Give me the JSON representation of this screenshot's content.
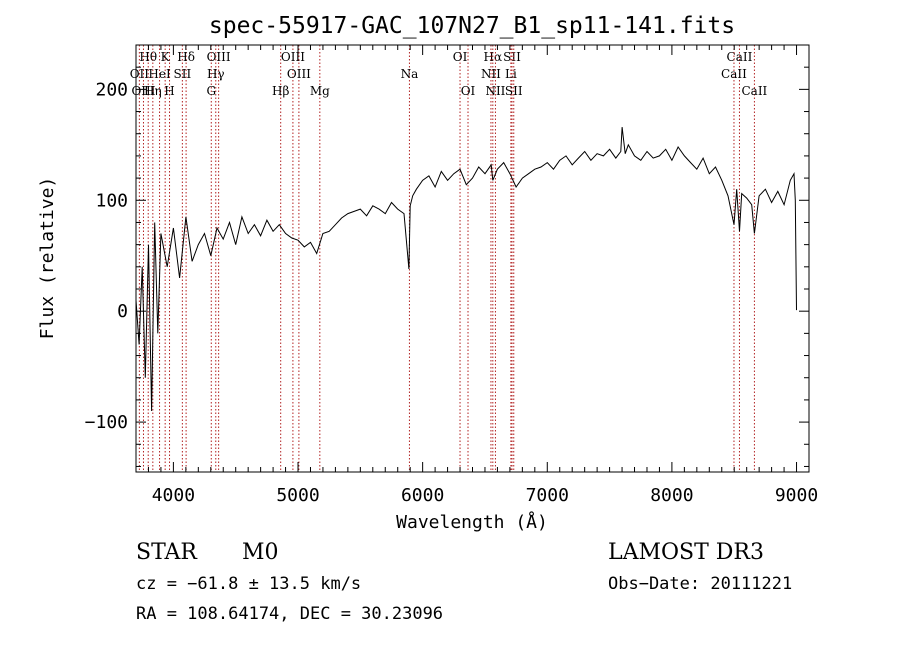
{
  "chart_data": {
    "type": "line",
    "title": "spec-55917-GAC_107N27_B1_sp11-141.fits",
    "xlabel": "Wavelength (Å)",
    "ylabel": "Flux (relative)",
    "xlim": [
      3700,
      9100
    ],
    "ylim": [
      -145,
      240
    ],
    "xticks": [
      4000,
      5000,
      6000,
      7000,
      8000,
      9000
    ],
    "xtick_labels": [
      "4000",
      "5000",
      "6000",
      "7000",
      "8000",
      "9000"
    ],
    "yticks": [
      -100,
      0,
      100,
      200
    ],
    "ytick_labels": [
      "−100",
      "0",
      "100",
      "200"
    ],
    "series": [
      {
        "name": "spectrum",
        "x": [
          3700,
          3725,
          3750,
          3775,
          3800,
          3825,
          3850,
          3875,
          3900,
          3950,
          4000,
          4050,
          4100,
          4150,
          4200,
          4250,
          4300,
          4350,
          4400,
          4450,
          4500,
          4550,
          4600,
          4650,
          4700,
          4750,
          4800,
          4850,
          4900,
          4950,
          5000,
          5050,
          5100,
          5150,
          5200,
          5250,
          5300,
          5350,
          5400,
          5450,
          5500,
          5550,
          5600,
          5650,
          5700,
          5750,
          5800,
          5850,
          5890,
          5900,
          5920,
          5950,
          6000,
          6050,
          6100,
          6150,
          6200,
          6250,
          6300,
          6350,
          6400,
          6450,
          6500,
          6550,
          6563,
          6600,
          6650,
          6700,
          6750,
          6800,
          6850,
          6900,
          6950,
          7000,
          7050,
          7100,
          7150,
          7200,
          7250,
          7300,
          7350,
          7400,
          7450,
          7500,
          7550,
          7590,
          7600,
          7625,
          7650,
          7700,
          7750,
          7800,
          7850,
          7900,
          7950,
          8000,
          8050,
          8100,
          8150,
          8200,
          8250,
          8300,
          8350,
          8400,
          8450,
          8498,
          8520,
          8542,
          8560,
          8600,
          8640,
          8662,
          8700,
          8750,
          8800,
          8850,
          8900,
          8950,
          8980,
          8990,
          9000
        ],
        "y": [
          10,
          -30,
          40,
          -60,
          60,
          -90,
          80,
          -20,
          70,
          40,
          75,
          30,
          85,
          45,
          60,
          70,
          50,
          75,
          65,
          80,
          60,
          85,
          70,
          78,
          68,
          82,
          72,
          78,
          70,
          66,
          64,
          58,
          62,
          52,
          70,
          72,
          78,
          84,
          88,
          90,
          92,
          86,
          95,
          92,
          88,
          98,
          92,
          88,
          38,
          95,
          104,
          110,
          118,
          122,
          112,
          126,
          118,
          124,
          128,
          114,
          120,
          130,
          124,
          132,
          118,
          128,
          134,
          124,
          112,
          120,
          124,
          128,
          130,
          134,
          128,
          136,
          140,
          132,
          138,
          144,
          136,
          142,
          140,
          146,
          138,
          144,
          166,
          142,
          150,
          140,
          136,
          144,
          138,
          140,
          146,
          136,
          148,
          140,
          134,
          128,
          138,
          124,
          130,
          118,
          104,
          78,
          110,
          72,
          106,
          102,
          96,
          70,
          104,
          110,
          98,
          108,
          96,
          118,
          124,
          100,
          1
        ]
      }
    ],
    "annotations": [
      "spectral line markers: Hθ, OII, OIII, Hη, K, HeI, H, Hδ, SII, OIII, Hγ, G, OIII, OIII, Hβ, Mg, Na, OI, OI, Hα, NII, NII, SII, Li, SII, CaII, CaII, CaII"
    ],
    "lines": [
      {
        "label": "OII",
        "x": 3727,
        "row": 1
      },
      {
        "label": "Hθ",
        "x": 3798,
        "row": 0
      },
      {
        "label": "OIII",
        "x": 3760,
        "row": 2
      },
      {
        "label": "Hη",
        "x": 3835,
        "row": 2
      },
      {
        "label": "K",
        "x": 3934,
        "row": 0
      },
      {
        "label": "HeI",
        "x": 3889,
        "row": 1
      },
      {
        "label": "H",
        "x": 3969,
        "row": 2
      },
      {
        "label": "Hδ",
        "x": 4102,
        "row": 0
      },
      {
        "label": "SII",
        "x": 4072,
        "row": 1
      },
      {
        "label": "OIII",
        "x": 4363,
        "row": 0
      },
      {
        "label": "Hγ",
        "x": 4340,
        "row": 1
      },
      {
        "label": "G",
        "x": 4304,
        "row": 2
      },
      {
        "label": "OIII",
        "x": 4959,
        "row": 0
      },
      {
        "label": "OIII",
        "x": 5007,
        "row": 1
      },
      {
        "label": "Hβ",
        "x": 4861,
        "row": 2
      },
      {
        "label": "Mg",
        "x": 5175,
        "row": 2
      },
      {
        "label": "Na",
        "x": 5894,
        "row": 1
      },
      {
        "label": "OI",
        "x": 6300,
        "row": 0
      },
      {
        "label": "OI",
        "x": 6364,
        "row": 2
      },
      {
        "label": "Hα",
        "x": 6563,
        "row": 0
      },
      {
        "label": "NII",
        "x": 6548,
        "row": 1
      },
      {
        "label": "NII",
        "x": 6584,
        "row": 2
      },
      {
        "label": "SII",
        "x": 6717,
        "row": 0
      },
      {
        "label": "Li",
        "x": 6708,
        "row": 1
      },
      {
        "label": "SII",
        "x": 6731,
        "row": 2
      },
      {
        "label": "CaII",
        "x": 8542,
        "row": 0
      },
      {
        "label": "CaII",
        "x": 8498,
        "row": 1
      },
      {
        "label": "CaII",
        "x": 8662,
        "row": 2
      }
    ]
  },
  "info": {
    "object_class": "STAR",
    "subclass": "M0",
    "survey": "LAMOST DR3",
    "cz": "cz = −61.8 ± 13.5 km/s",
    "obs_date": "Obs−Date: 20111221",
    "radec": "RA = 108.64174, DEC =  30.23096"
  },
  "colors": {
    "spectrum": "#000000",
    "line_markers": "#b22222",
    "axes": "#000000"
  }
}
